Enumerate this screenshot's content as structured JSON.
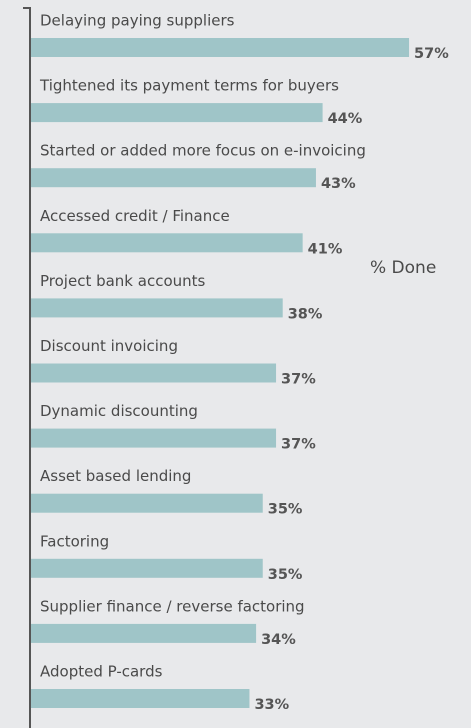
{
  "chart_data": {
    "type": "bar",
    "orientation": "horizontal",
    "categories": [
      "Delaying paying suppliers",
      "Tightened its payment terms for buyers",
      "Started or added more focus on e-invoicing",
      "Accessed credit / Finance",
      "Project bank accounts",
      "Discount invoicing",
      "Dynamic discounting",
      "Asset based lending",
      "Factoring",
      "Supplier finance / reverse factoring",
      "Adopted P-cards"
    ],
    "values": [
      57,
      44,
      43,
      41,
      38,
      37,
      37,
      35,
      35,
      34,
      33
    ],
    "value_labels": [
      "57%",
      "44%",
      "43%",
      "41%",
      "38%",
      "37%",
      "37%",
      "35%",
      "35%",
      "34%",
      "33%"
    ],
    "color": "#9fc5c8",
    "annotation": "% Done"
  }
}
